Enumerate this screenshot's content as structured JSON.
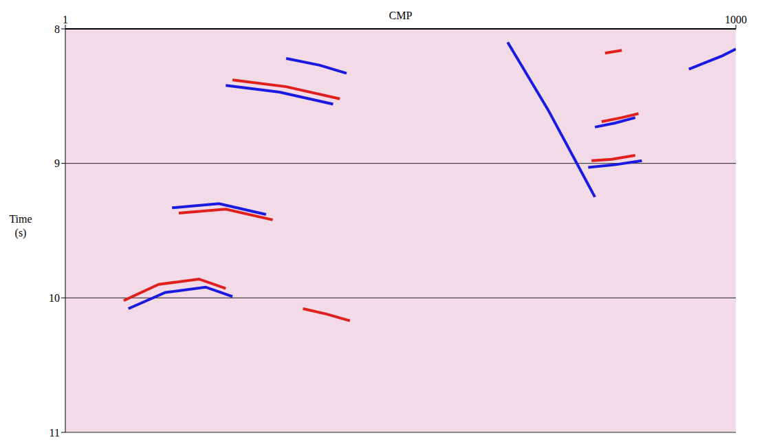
{
  "chart_data": {
    "type": "line",
    "x_label": "CMP",
    "y_label": "Time (s)",
    "xlim": [
      1,
      1000
    ],
    "xticks": [
      1,
      1000
    ],
    "ylim": [
      8,
      11
    ],
    "yticks": [
      8,
      9,
      10,
      11
    ],
    "grid": true,
    "series": [
      {
        "color": "#1a1ae0",
        "x": [
          790,
          820,
          850
        ],
        "values": [
          8.73,
          8.7,
          8.66
        ]
      },
      {
        "color": "#e0201c",
        "x": [
          800,
          830,
          855
        ],
        "values": [
          8.69,
          8.66,
          8.63
        ]
      },
      {
        "color": "#e0201c",
        "x": [
          785,
          815,
          850
        ],
        "values": [
          8.98,
          8.97,
          8.94
        ]
      },
      {
        "color": "#1a1ae0",
        "x": [
          780,
          820,
          860
        ],
        "values": [
          9.03,
          9.01,
          8.98
        ]
      },
      {
        "color": "#1a1ae0",
        "x": [
          160,
          230,
          300
        ],
        "values": [
          9.33,
          9.3,
          9.38
        ]
      },
      {
        "color": "#e0201c",
        "x": [
          170,
          240,
          310
        ],
        "values": [
          9.37,
          9.34,
          9.42
        ]
      },
      {
        "color": "#e0201c",
        "x": [
          88,
          140,
          200,
          240
        ],
        "values": [
          10.02,
          9.9,
          9.86,
          9.93
        ]
      },
      {
        "color": "#1a1ae0",
        "x": [
          95,
          150,
          210,
          250
        ],
        "values": [
          10.08,
          9.96,
          9.92,
          9.99
        ]
      },
      {
        "color": "#e0201c",
        "x": [
          355,
          390,
          425
        ],
        "values": [
          10.08,
          10.12,
          10.17
        ]
      },
      {
        "color": "#1a1ae0",
        "x": [
          240,
          320,
          400
        ],
        "values": [
          8.42,
          8.47,
          8.56
        ]
      },
      {
        "color": "#e0201c",
        "x": [
          250,
          330,
          410
        ],
        "values": [
          8.38,
          8.43,
          8.52
        ]
      },
      {
        "color": "#1a1ae0",
        "x": [
          330,
          380,
          420
        ],
        "values": [
          8.22,
          8.27,
          8.33
        ]
      },
      {
        "color": "#1a1ae0",
        "x": [
          660,
          720,
          790
        ],
        "values": [
          8.1,
          8.6,
          9.25
        ]
      },
      {
        "color": "#e0201c",
        "x": [
          805,
          830
        ],
        "values": [
          8.18,
          8.16
        ]
      },
      {
        "color": "#1a1ae0",
        "x": [
          930,
          980,
          1000
        ],
        "values": [
          8.3,
          8.2,
          8.15
        ]
      }
    ]
  }
}
